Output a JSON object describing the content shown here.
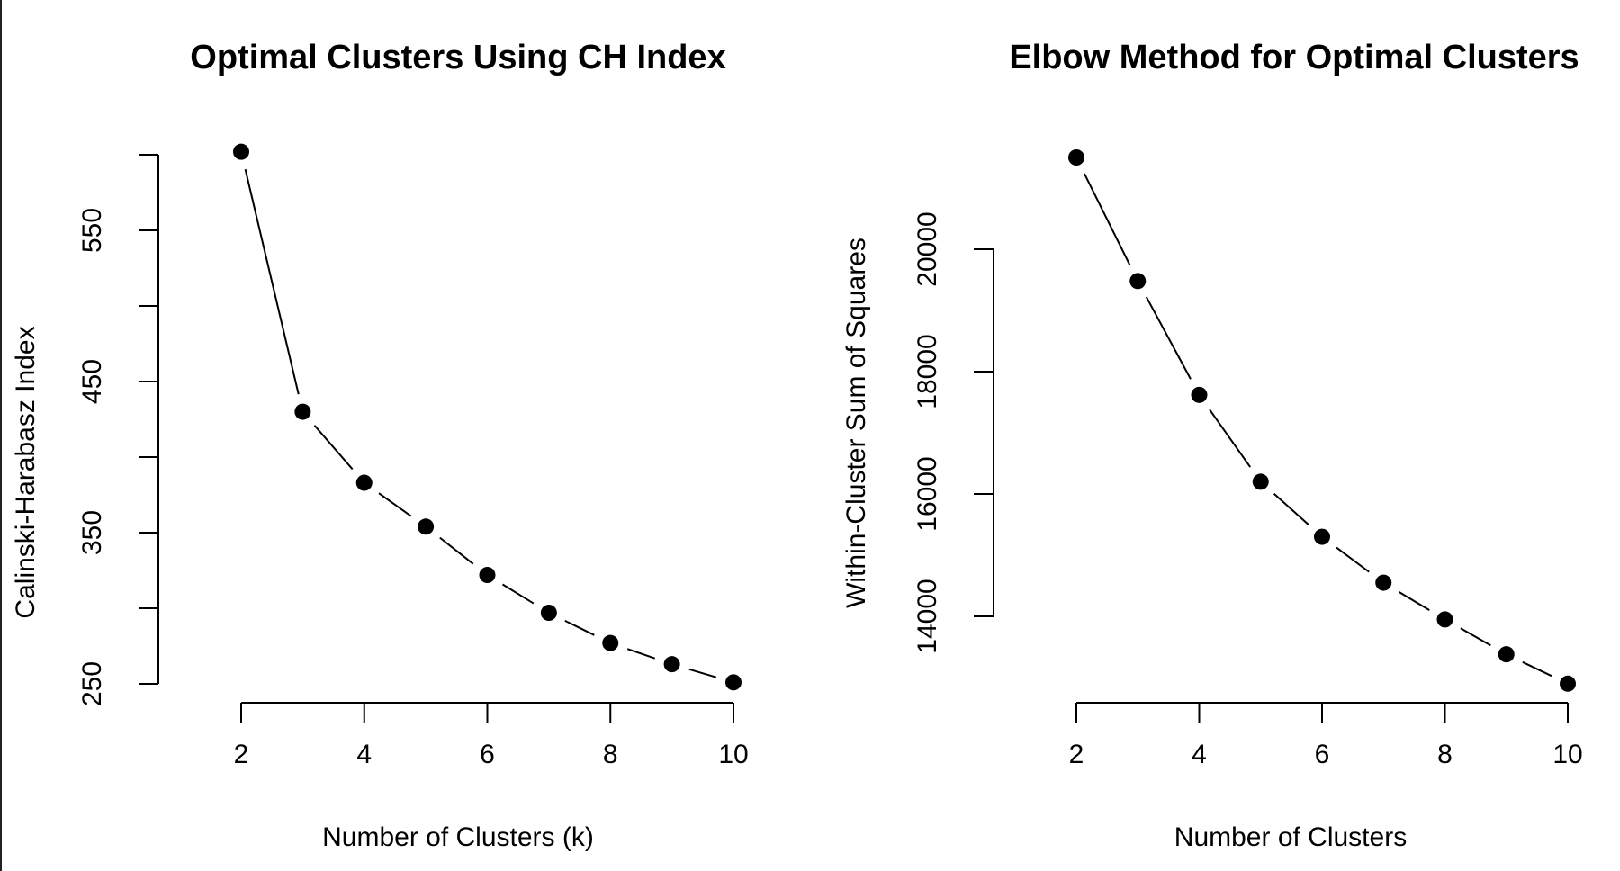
{
  "chart_data": [
    {
      "type": "line",
      "title": "Optimal Clusters Using CH Index",
      "xlabel": "Number of Clusters (k)",
      "ylabel": "Calinski-Harabasz Index",
      "x": [
        2,
        3,
        4,
        5,
        6,
        7,
        8,
        9,
        10
      ],
      "series": [
        {
          "values": [
            602,
            430,
            383,
            354,
            322,
            297,
            277,
            263,
            251
          ]
        }
      ],
      "xlim": [
        2,
        10
      ],
      "ylim": [
        250,
        600
      ],
      "xticks": [
        "2",
        "4",
        "6",
        "8",
        "10"
      ],
      "yticks": [
        "250",
        "350",
        "450",
        "550"
      ],
      "grid": false,
      "line_style": "solid-then-dashed",
      "marker": "filled-circle",
      "color": "#000000"
    },
    {
      "type": "line",
      "title": "Elbow Method for Optimal Clusters",
      "xlabel": "Number of Clusters",
      "ylabel": "Within-Cluster Sum of Squares",
      "x": [
        2,
        3,
        4,
        5,
        6,
        7,
        8,
        9,
        10
      ],
      "series": [
        {
          "values": [
            21500,
            19480,
            17620,
            16200,
            15300,
            14550,
            13950,
            13380,
            12900
          ]
        }
      ],
      "xlim": [
        2,
        10
      ],
      "ylim": [
        14000,
        20000
      ],
      "xticks": [
        "2",
        "4",
        "6",
        "8",
        "10"
      ],
      "yticks": [
        "14000",
        "16000",
        "18000",
        "20000"
      ],
      "grid": false,
      "line_style": "solid-then-dashed",
      "marker": "filled-circle",
      "color": "#000000"
    }
  ]
}
